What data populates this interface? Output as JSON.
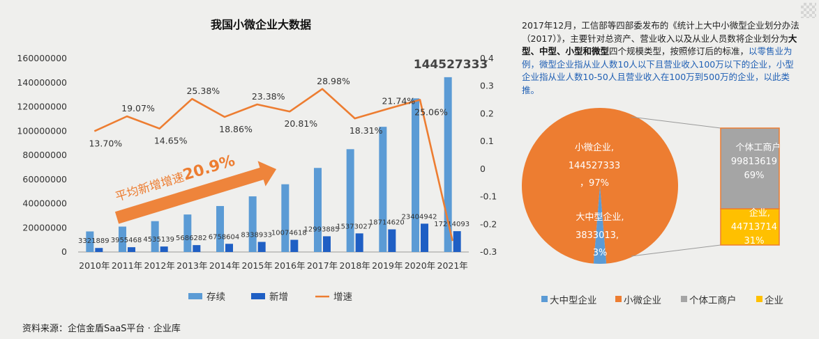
{
  "chart_data": [
    {
      "type": "bar+line",
      "title": "我国小微企业大数据",
      "categories": [
        "2010年",
        "2011年",
        "2012年",
        "2013年",
        "2014年",
        "2015年",
        "2016年",
        "2017年",
        "2018年",
        "2019年",
        "2020年",
        "2021年"
      ],
      "series": [
        {
          "name": "存续",
          "type": "bar",
          "color": "#5b9bd5",
          "values": [
            17000000,
            21000000,
            25500000,
            31000000,
            38000000,
            46000000,
            56000000,
            69500000,
            85000000,
            103500000,
            127000000,
            144527333
          ]
        },
        {
          "name": "新增",
          "type": "bar",
          "color": "#1f5fc4",
          "values": [
            3321889,
            3955468,
            4535139,
            5686282,
            6758604,
            8338933,
            10074618,
            12993885,
            15373027,
            18714620,
            23404942,
            17214093
          ]
        },
        {
          "name": "增速",
          "type": "line",
          "axis": "right",
          "color": "#ed7d31",
          "values": [
            0.137,
            0.1907,
            0.1465,
            0.2538,
            0.1886,
            0.2338,
            0.2081,
            0.2898,
            0.1831,
            0.2174,
            0.2506,
            -0.26
          ],
          "labels": [
            "13.70%",
            "19.07%",
            "14.65%",
            "25.38%",
            "18.86%",
            "23.38%",
            "20.81%",
            "28.98%",
            "18.31%",
            "21.74%",
            "25.06%",
            ""
          ]
        }
      ],
      "left_axis": {
        "ylim": [
          0,
          160000000
        ],
        "ticks": [
          "0",
          "20000000",
          "40000000",
          "60000000",
          "80000000",
          "100000000",
          "120000000",
          "140000000",
          "160000000"
        ]
      },
      "right_axis": {
        "ylim": [
          -0.3,
          0.4
        ],
        "ticks": [
          "-0.3",
          "-0.2",
          "-0.1",
          "0",
          "0.1",
          "0.2",
          "0.3",
          "0.4"
        ]
      },
      "highlight_label": "144527333",
      "annotation": {
        "text": "平均新增增速",
        "value": "20.9%"
      },
      "legend": {
        "position": "bottom",
        "items": [
          "存续",
          "新增",
          "增速"
        ]
      }
    },
    {
      "type": "pie+stacked-bar",
      "slices": [
        {
          "name": "小微企业",
          "value": 144527333,
          "pct": "97%",
          "color": "#ed7d31"
        },
        {
          "name": "大中型企业",
          "value": 3833013,
          "pct": "3%",
          "color": "#5b9bd5"
        }
      ],
      "breakdown": [
        {
          "name": "个体工商户",
          "value": 99813619,
          "pct": "69%",
          "color": "#a5a5a5"
        },
        {
          "name": "企业",
          "value": 44713714,
          "pct": "31%",
          "color": "#ffc000"
        }
      ],
      "legend": {
        "position": "bottom",
        "items": [
          "大中型企业",
          "小微企业",
          "个体工商户",
          "企业"
        ]
      }
    }
  ],
  "note": {
    "part1": "2017年12月，工信部等四部委发布的《统计上大中小微型企业划分办法（2017）》，主要针对总资产、营业收入以及从业人员数将企业划分为",
    "bold1": "大型、中型、小型和微型",
    "part2": "四个规模类型，按照修订后的标准，",
    "blue": "以零售业为例，微型企业指从业人数10人以下且营业收入100万以下的企业，小型企业指从业人数10-50人且营业收入在100万到500万的企业，以此类推。"
  },
  "source": "资料来源：企信金盾SaaS平台 · 企业库"
}
